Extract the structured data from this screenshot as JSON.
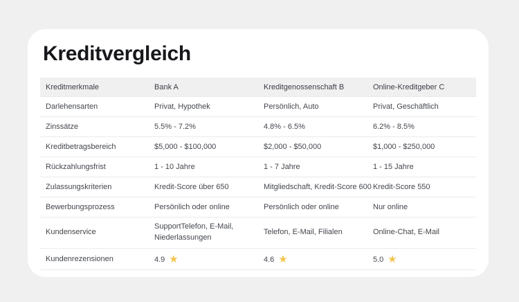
{
  "colors": {
    "page_background": "#f0f0f1",
    "card_background": "#ffffff",
    "header_row_background": "#f0f0f1",
    "divider": "#eaeaec",
    "title_text": "#17181c",
    "body_text": "#43464d",
    "star": "#f3c44d"
  },
  "header": {
    "title": "Kreditvergleich"
  },
  "comparison_table": {
    "columns": [
      "Kreditmerkmale",
      "Bank A",
      "Kreditgenossenschaft B",
      "Online-Kreditgeber C"
    ],
    "rows": [
      [
        "Darlehensarten",
        "Privat, Hypothek",
        "Persönlich, Auto",
        "Privat, Geschäftlich"
      ],
      [
        "Zinssätze",
        "5.5% - 7.2%",
        "4.8% - 6.5%",
        "6.2% - 8.5%"
      ],
      [
        "Kreditbetragsbereich",
        "$5,000 - $100,000",
        "$2,000 - $50,000",
        "$1,000 - $250,000"
      ],
      [
        "Rückzahlungsfrist",
        "1 - 10 Jahre",
        "1 - 7 Jahre",
        "1 - 15 Jahre"
      ],
      [
        "Zulassungskriterien",
        "Kredit-Score über 650",
        "Mitgliedschaft, Kredit-Score 600",
        "Kredit-Score 550"
      ],
      [
        "Bewerbungsprozess",
        "Persönlich oder online",
        "Persönlich oder online",
        "Nur online"
      ],
      [
        "Kundenservice",
        "SupportTelefon, E-Mail, Niederlassungen",
        "Telefon, E-Mail, Filialen",
        "Online-Chat, E-Mail"
      ]
    ],
    "ratings": {
      "label": "Kundenrezensionen",
      "values": [
        "4.9",
        "4.6",
        "5.0"
      ],
      "star_glyph": "★"
    }
  }
}
